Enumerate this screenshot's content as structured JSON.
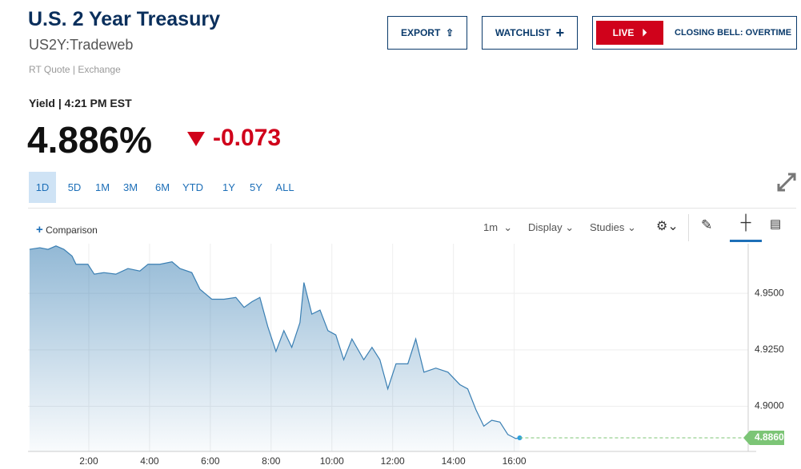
{
  "header": {
    "title": "U.S. 2 Year Treasury",
    "symbol": "US2Y:Tradeweb",
    "source": "RT Quote | Exchange",
    "quote_label": "Yield | 4:21 PM EST",
    "last": "4.886%",
    "change": "-0.073"
  },
  "buttons": {
    "export": "EXPORT",
    "watchlist": "WATCHLIST",
    "live": "LIVE",
    "live_show": "CLOSING BELL: OVERTIME"
  },
  "ranges": [
    "1D",
    "5D",
    "1M",
    "3M",
    "6M",
    "YTD",
    "1Y",
    "5Y",
    "ALL"
  ],
  "toolbar": {
    "comparison": "Comparison",
    "interval": "1m",
    "display": "Display",
    "studies": "Studies"
  },
  "chart_data": {
    "type": "area",
    "color": "#3a7fb3",
    "grid": true,
    "x": [
      0.05,
      0.39,
      0.66,
      0.92,
      1.18,
      1.45,
      1.58,
      1.97,
      2.18,
      2.5,
      2.89,
      3.29,
      3.68,
      3.95,
      4.34,
      4.74,
      5.0,
      5.39,
      5.66,
      6.05,
      6.45,
      6.84,
      7.11,
      7.37,
      7.63,
      7.89,
      8.16,
      8.42,
      8.68,
      8.95,
      9.08,
      9.34,
      9.61,
      9.87,
      10.13,
      10.39,
      10.66,
      11.05,
      11.32,
      11.58,
      11.84,
      12.11,
      12.5,
      12.76,
      13.03,
      13.42,
      13.82,
      14.21,
      14.47,
      14.74,
      15.0,
      15.26,
      15.53,
      15.79,
      16.05,
      16.18
    ],
    "values": [
      4.9695,
      4.9702,
      4.9695,
      4.971,
      4.9695,
      4.9665,
      4.9629,
      4.9629,
      4.9585,
      4.9592,
      4.9585,
      4.961,
      4.9599,
      4.9629,
      4.9629,
      4.964,
      4.961,
      4.9592,
      4.9518,
      4.9474,
      4.9474,
      4.9482,
      4.9438,
      4.9463,
      4.9482,
      4.9353,
      4.9243,
      4.9335,
      4.9261,
      4.9371,
      4.9548,
      4.9408,
      4.9426,
      4.9335,
      4.9316,
      4.9206,
      4.9298,
      4.9206,
      4.9261,
      4.9206,
      4.9077,
      4.9188,
      4.9188,
      4.9298,
      4.9151,
      4.9169,
      4.9151,
      4.9096,
      4.9077,
      4.8985,
      4.8912,
      4.8938,
      4.893,
      4.8875,
      4.8857,
      4.886
    ],
    "xlim": [
      0,
      23.7
    ],
    "ylim": [
      4.88,
      4.972
    ],
    "xticks": [
      {
        "value": 2,
        "label": "2:00"
      },
      {
        "value": 4,
        "label": "4:00"
      },
      {
        "value": 6,
        "label": "6:00"
      },
      {
        "value": 8,
        "label": "8:00"
      },
      {
        "value": 10,
        "label": "10:00"
      },
      {
        "value": 12,
        "label": "12:00"
      },
      {
        "value": 14,
        "label": "14:00"
      },
      {
        "value": 16,
        "label": "16:00"
      }
    ],
    "yticks": [
      {
        "value": 4.9,
        "label": "4.9000"
      },
      {
        "value": 4.925,
        "label": "4.9250"
      },
      {
        "value": 4.95,
        "label": "4.9500"
      }
    ],
    "reference_line": {
      "value": 4.886,
      "label": "4.8860",
      "color": "#7cc576"
    }
  }
}
